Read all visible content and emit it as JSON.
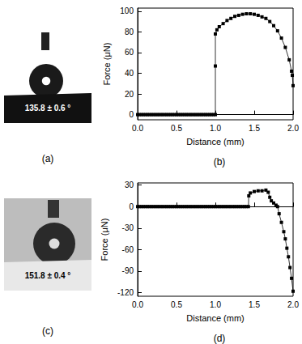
{
  "chart_data": [
    {
      "type": "line",
      "title": "(b)",
      "x_label": "Distance (mm)",
      "y_label": "Force (μN)",
      "xlim": [
        0,
        2
      ],
      "xticks": [
        {
          "value": 0,
          "label": "0.0"
        },
        {
          "value": 0.5,
          "label": "0.5"
        },
        {
          "value": 1,
          "label": "1.0"
        },
        {
          "value": 1.5,
          "label": "1.5"
        },
        {
          "value": 2,
          "label": "2.0"
        }
      ],
      "ylim": [
        -5,
        103
      ],
      "yticks": [
        0,
        20,
        40,
        60,
        80,
        100
      ],
      "grid": false,
      "color": "#000000",
      "marker": "square",
      "line_style": "solid",
      "x": [
        0,
        0.025,
        0.05,
        0.075,
        0.1,
        0.125,
        0.15,
        0.175,
        0.2,
        0.225,
        0.25,
        0.275,
        0.3,
        0.325,
        0.35,
        0.375,
        0.4,
        0.425,
        0.45,
        0.475,
        0.5,
        0.525,
        0.55,
        0.575,
        0.6,
        0.625,
        0.65,
        0.675,
        0.7,
        0.725,
        0.75,
        0.775,
        0.8,
        0.825,
        0.85,
        0.875,
        0.9,
        0.925,
        0.95,
        0.975,
        1.0,
        1.0,
        1.0,
        1.02,
        1.05,
        1.1,
        1.15,
        1.2,
        1.25,
        1.3,
        1.35,
        1.4,
        1.45,
        1.5,
        1.55,
        1.6,
        1.65,
        1.7,
        1.75,
        1.8,
        1.85,
        1.9,
        1.95,
        1.98,
        1.99,
        2.0
      ],
      "values": [
        0,
        0,
        0,
        0,
        0,
        0,
        0,
        0,
        0,
        0,
        0,
        0,
        0,
        0,
        0,
        0,
        0,
        0,
        0,
        0,
        0,
        0,
        0,
        0,
        0,
        0,
        0,
        0,
        0,
        0,
        0,
        0,
        0,
        0,
        0,
        0,
        0,
        0,
        0,
        0,
        0,
        47,
        78,
        82,
        85,
        88,
        91,
        93,
        95,
        96,
        97,
        97.5,
        97.5,
        97,
        96,
        94.5,
        93,
        90,
        86,
        81,
        74,
        65,
        53,
        42,
        38,
        28
      ]
    },
    {
      "type": "line",
      "title": "(d)",
      "x_label": "Distance (mm)",
      "y_label": "Force (μN)",
      "xlim": [
        0,
        2
      ],
      "xticks": [
        {
          "value": 0,
          "label": "0.0"
        },
        {
          "value": 0.5,
          "label": "0.5"
        },
        {
          "value": 1,
          "label": "1.0"
        },
        {
          "value": 1.5,
          "label": "1.5"
        },
        {
          "value": 2,
          "label": "2.0"
        }
      ],
      "ylim": [
        -125,
        33
      ],
      "yticks": [
        -120,
        -90,
        -60,
        -30,
        0,
        30
      ],
      "grid": false,
      "color": "#000000",
      "marker": "square",
      "line_style": "solid",
      "x": [
        0,
        0.025,
        0.05,
        0.075,
        0.1,
        0.125,
        0.15,
        0.175,
        0.2,
        0.225,
        0.25,
        0.275,
        0.3,
        0.325,
        0.35,
        0.375,
        0.4,
        0.425,
        0.45,
        0.475,
        0.5,
        0.525,
        0.55,
        0.575,
        0.6,
        0.625,
        0.65,
        0.675,
        0.7,
        0.725,
        0.75,
        0.775,
        0.8,
        0.825,
        0.85,
        0.875,
        0.9,
        0.925,
        0.95,
        0.975,
        1.0,
        1.025,
        1.05,
        1.075,
        1.1,
        1.125,
        1.15,
        1.175,
        1.2,
        1.225,
        1.25,
        1.275,
        1.3,
        1.325,
        1.35,
        1.375,
        1.4,
        1.425,
        1.43,
        1.45,
        1.5,
        1.55,
        1.6,
        1.65,
        1.68,
        1.7,
        1.72,
        1.75,
        1.78,
        1.8,
        1.82,
        1.85,
        1.88,
        1.9,
        1.92,
        1.94,
        1.96,
        1.98,
        2.0
      ],
      "values": [
        0,
        0,
        0,
        0,
        0,
        0,
        0,
        0,
        0,
        0,
        0,
        0,
        0,
        0,
        0,
        0,
        0,
        0,
        0,
        0,
        0,
        0,
        0,
        0,
        0,
        0,
        0,
        0,
        0,
        0,
        0,
        0,
        0,
        0,
        0,
        0,
        0,
        0,
        0,
        0,
        0,
        0,
        0,
        0,
        0,
        0,
        0,
        0,
        0,
        0,
        0,
        0,
        0,
        0,
        0,
        0,
        0,
        0,
        15,
        19,
        21,
        22,
        22,
        23,
        20,
        13,
        8,
        5,
        2,
        0,
        -10,
        -22,
        -35,
        -45,
        -58,
        -70,
        -85,
        -100,
        -118
      ]
    }
  ],
  "photos": [
    {
      "label": "(a)",
      "contact_angle": "135.8 ± 0.6 °"
    },
    {
      "label": "(c)",
      "contact_angle": "151.8 ± 0.4 °"
    }
  ]
}
